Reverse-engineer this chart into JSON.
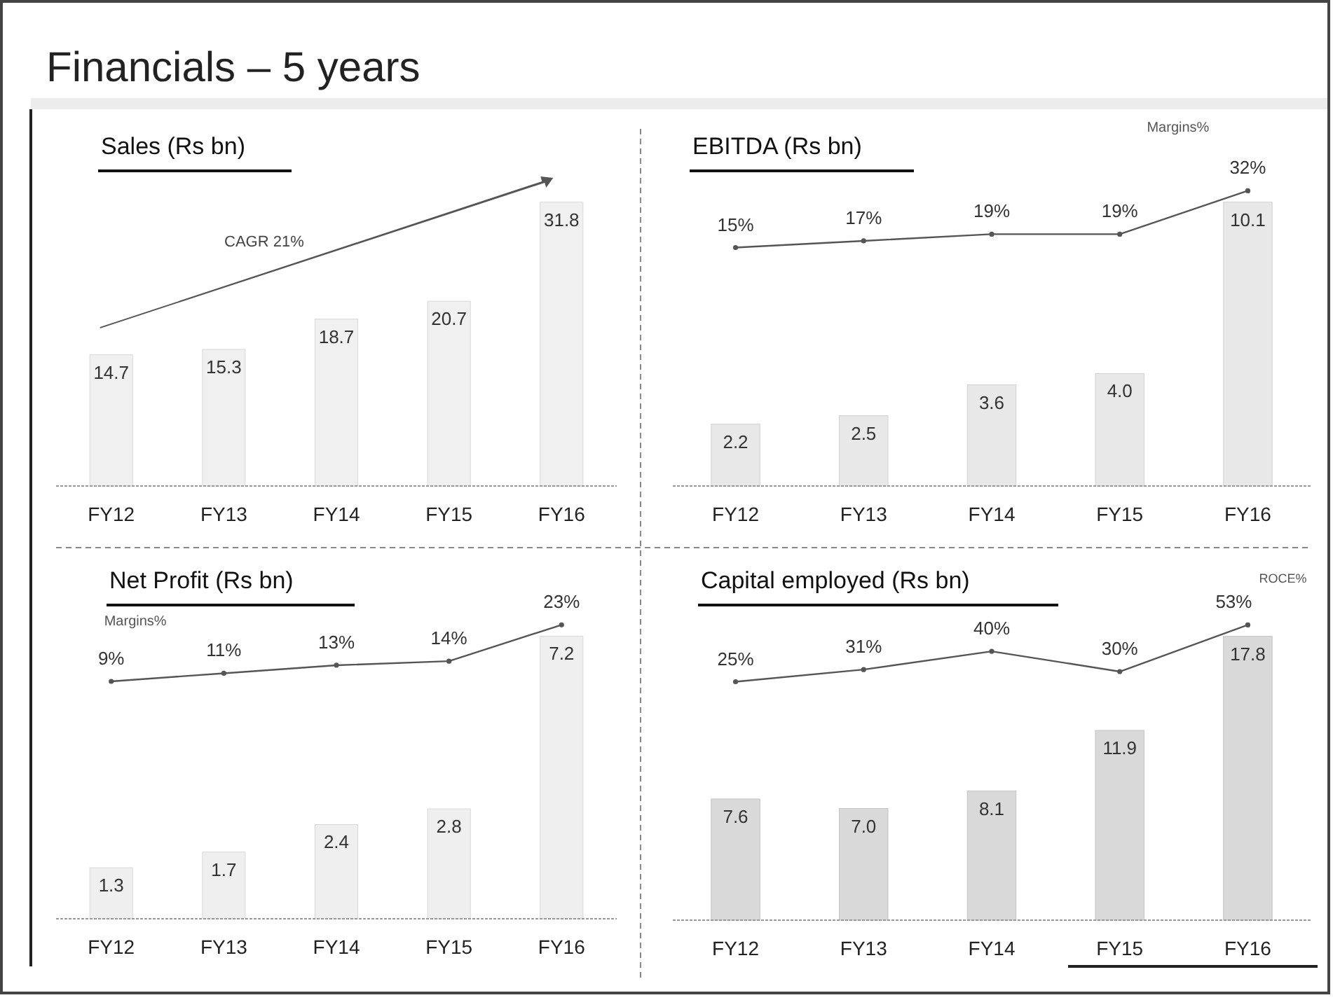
{
  "chart_data": [
    {
      "type": "bar",
      "title": "Financials – 5 years",
      "subtitle": "Sales (Rs bn)",
      "categories": [
        "FY12",
        "FY13",
        "FY14",
        "FY15",
        "FY16"
      ],
      "tick_labels": "x",
      "annotations": [
        "CAGR 21%"
      ],
      "series": [
        {
          "color": "#f0f0f0",
          "values": [
            14.7,
            15.3,
            18.7,
            20.7,
            31.8
          ],
          "value_labels": [
            "14.7",
            "15.3",
            "18.7",
            "20.7",
            "31.8"
          ]
        }
      ]
    },
    {
      "type": "bar",
      "title": "EBITDA (Rs bn)",
      "categories": [
        "FY12",
        "FY13",
        "FY14",
        "FY15",
        "FY16"
      ],
      "tick_labels": "x",
      "marker": "circle",
      "series": [
        {
          "color": "#e8e8e8",
          "values": [
            2.2,
            2.5,
            3.6,
            4.0,
            10.1
          ],
          "value_labels": [
            "2.2",
            "2.5",
            "3.6",
            "4.0",
            "10.1"
          ]
        },
        {
          "type": "line",
          "axis": "y2",
          "name": "Margins%",
          "color": "#555555",
          "values": [
            15,
            17,
            19,
            19,
            32
          ],
          "value_labels": [
            "15%",
            "17%",
            "19%",
            "19%",
            "32%"
          ]
        }
      ]
    },
    {
      "type": "bar",
      "title": "Net Profit (Rs bn)",
      "categories": [
        "FY12",
        "FY13",
        "FY14",
        "FY15",
        "FY16"
      ],
      "tick_labels": "x",
      "marker": "circle",
      "series": [
        {
          "color": "#efefef",
          "values": [
            1.3,
            1.7,
            2.4,
            2.8,
            7.2
          ],
          "value_labels": [
            "1.3",
            "1.7",
            "2.4",
            "2.8",
            "7.2"
          ]
        },
        {
          "type": "line",
          "axis": "y2",
          "name": "Margins%",
          "color": "#555555",
          "values": [
            9,
            11,
            13,
            14,
            23
          ],
          "value_labels": [
            "9%",
            "11%",
            "13%",
            "14%",
            "23%"
          ]
        }
      ]
    },
    {
      "type": "bar",
      "title": "Capital employed (Rs bn)",
      "categories": [
        "FY12",
        "FY13",
        "FY14",
        "FY15",
        "FY16"
      ],
      "tick_labels": "x",
      "marker": "circle",
      "series": [
        {
          "color": "#d9d9d9",
          "values": [
            7.6,
            7.0,
            8.1,
            11.9,
            17.8
          ],
          "value_labels": [
            "7.6",
            "7.0",
            "8.1",
            "11.9",
            "17.8"
          ]
        },
        {
          "type": "line",
          "axis": "y2",
          "name": "ROCE%",
          "color": "#555555",
          "values": [
            25,
            31,
            40,
            30,
            53
          ],
          "value_labels": [
            "25%",
            "31%",
            "40%",
            "30%",
            "53%"
          ]
        }
      ]
    }
  ]
}
